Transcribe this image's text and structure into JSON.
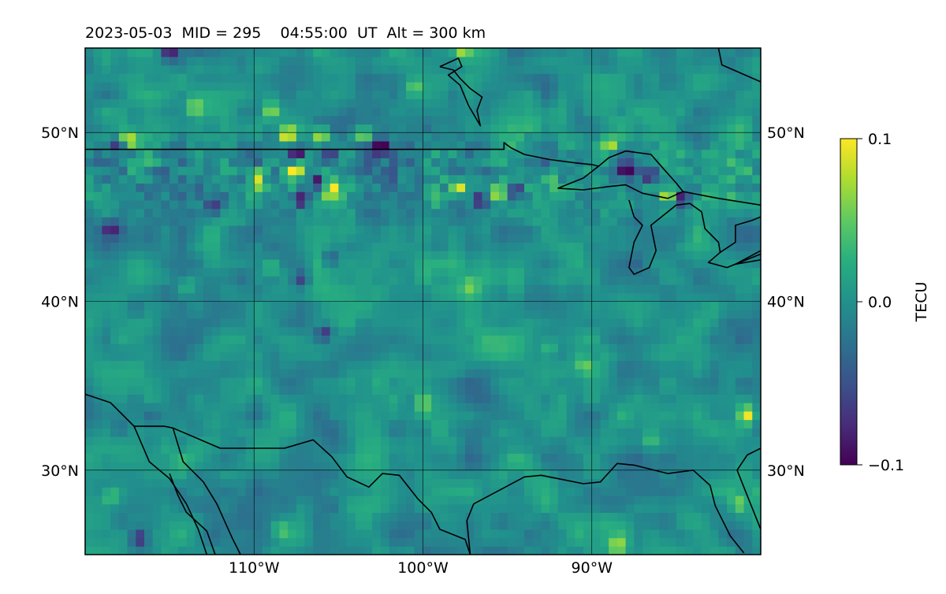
{
  "chart_data": {
    "type": "heatmap",
    "title": "2023-05-03  MID = 295    04:55:00  UT  Alt = 300 km",
    "xlim": [
      -120,
      -80
    ],
    "ylim": [
      25,
      55
    ],
    "x_ticks": [
      {
        "value": -110,
        "label": "110°W"
      },
      {
        "value": -100,
        "label": "100°W"
      },
      {
        "value": -90,
        "label": "90°W"
      }
    ],
    "y_ticks": [
      {
        "value": 30,
        "label": "30°N"
      },
      {
        "value": 40,
        "label": "40°N"
      },
      {
        "value": 50,
        "label": "50°N"
      }
    ],
    "grid": true,
    "colormap": "viridis",
    "colorbar": {
      "label": "TECU",
      "range": [
        -0.1,
        0.1
      ],
      "ticks": [
        {
          "value": 0.1,
          "label": "0.1"
        },
        {
          "value": 0.0,
          "label": "0.0"
        },
        {
          "value": -0.1,
          "label": "−0.1"
        }
      ]
    },
    "field": {
      "description_units": "TEC perturbation in TECU on ~0.5 deg lon/lat grid",
      "base_value": 0.0,
      "noise_amplitude": 0.035,
      "features": [
        {
          "lon": -115,
          "lat": 54.8,
          "value": -0.09
        },
        {
          "lon": -113.5,
          "lat": 51.5,
          "value": 0.06
        },
        {
          "lon": -117.5,
          "lat": 49.6,
          "value": 0.1
        },
        {
          "lon": -118,
          "lat": 49.2,
          "value": -0.1
        },
        {
          "lon": -109,
          "lat": 51.3,
          "value": 0.07
        },
        {
          "lon": -108,
          "lat": 49.9,
          "value": 0.1
        },
        {
          "lon": -107.5,
          "lat": 48.8,
          "value": -0.1
        },
        {
          "lon": -106,
          "lat": 49.9,
          "value": 0.1
        },
        {
          "lon": -105.5,
          "lat": 48.6,
          "value": -0.08
        },
        {
          "lon": -103.5,
          "lat": 49.9,
          "value": 0.09
        },
        {
          "lon": -102.5,
          "lat": 49.1,
          "value": -0.1
        },
        {
          "lon": -107.6,
          "lat": 47.7,
          "value": 0.1
        },
        {
          "lon": -107.2,
          "lat": 46.1,
          "value": -0.1
        },
        {
          "lon": -106.2,
          "lat": 47.1,
          "value": -0.09
        },
        {
          "lon": -105.3,
          "lat": 46.6,
          "value": 0.1
        },
        {
          "lon": -109.8,
          "lat": 47.3,
          "value": 0.09
        },
        {
          "lon": -97.8,
          "lat": 46.8,
          "value": 0.09
        },
        {
          "lon": -96.5,
          "lat": 46.1,
          "value": -0.1
        },
        {
          "lon": -95.8,
          "lat": 46.4,
          "value": 0.08
        },
        {
          "lon": -94.5,
          "lat": 46.6,
          "value": -0.09
        },
        {
          "lon": -92.5,
          "lat": 47.2,
          "value": 0.08
        },
        {
          "lon": -89,
          "lat": 49.3,
          "value": 0.09
        },
        {
          "lon": -88,
          "lat": 47.8,
          "value": -0.1
        },
        {
          "lon": -86.5,
          "lat": 47.3,
          "value": -0.08
        },
        {
          "lon": -85.5,
          "lat": 46.3,
          "value": 0.1
        },
        {
          "lon": -84.6,
          "lat": 46.1,
          "value": -0.1
        },
        {
          "lon": -99.5,
          "lat": 46.3,
          "value": 0.05
        },
        {
          "lon": -100.5,
          "lat": 52.8,
          "value": 0.05
        },
        {
          "lon": -97.7,
          "lat": 54.8,
          "value": 0.06
        },
        {
          "lon": -112.3,
          "lat": 45.7,
          "value": -0.05
        },
        {
          "lon": -118.5,
          "lat": 44.3,
          "value": -0.07
        },
        {
          "lon": -105.5,
          "lat": 42.6,
          "value": -0.05
        },
        {
          "lon": -109,
          "lat": 42.0,
          "value": 0.04
        },
        {
          "lon": -107.3,
          "lat": 41.3,
          "value": -0.05
        },
        {
          "lon": -97.2,
          "lat": 41.0,
          "value": 0.04
        },
        {
          "lon": -105.8,
          "lat": 38.2,
          "value": -0.07
        },
        {
          "lon": -114,
          "lat": 41.0,
          "value": 0.04
        },
        {
          "lon": -92.5,
          "lat": 37.3,
          "value": 0.04
        },
        {
          "lon": -90.5,
          "lat": 36.3,
          "value": 0.04
        },
        {
          "lon": -100,
          "lat": 34.0,
          "value": 0.04
        },
        {
          "lon": -80.8,
          "lat": 33.3,
          "value": 0.1
        },
        {
          "lon": -81.3,
          "lat": 28.0,
          "value": 0.06
        },
        {
          "lon": -116.8,
          "lat": 26.0,
          "value": -0.08
        },
        {
          "lon": -118.5,
          "lat": 28.5,
          "value": 0.05
        },
        {
          "lon": -86.5,
          "lat": 31.8,
          "value": 0.04
        },
        {
          "lon": -88.5,
          "lat": 25.5,
          "value": 0.07
        },
        {
          "lon": -108.5,
          "lat": 26.5,
          "value": 0.04
        }
      ]
    },
    "coastlines": [
      [
        [
          -120,
          49
        ],
        [
          -95.2,
          49
        ],
        [
          -95.2,
          49.4
        ],
        [
          -94.8,
          49.1
        ],
        [
          -94,
          48.7
        ],
        [
          -92.5,
          48.4
        ],
        [
          -91,
          48.2
        ],
        [
          -90,
          48.1
        ],
        [
          -89.6,
          48.0
        ]
      ],
      [
        [
          -89.6,
          48.0
        ],
        [
          -89,
          48.5
        ],
        [
          -88,
          48.9
        ],
        [
          -86.5,
          48.7
        ],
        [
          -85.8,
          47.9
        ],
        [
          -85,
          47.0
        ],
        [
          -84.6,
          46.5
        ],
        [
          -85.5,
          46.1
        ],
        [
          -87,
          46.4
        ],
        [
          -88,
          46.9
        ],
        [
          -89,
          46.8
        ],
        [
          -90.5,
          46.6
        ],
        [
          -92,
          46.7
        ],
        [
          -90.5,
          47.3
        ],
        [
          -89.6,
          48.0
        ]
      ],
      [
        [
          -84.6,
          46.5
        ],
        [
          -82.5,
          46.1
        ],
        [
          -80,
          45.7
        ]
      ],
      [
        [
          -87.8,
          46.0
        ],
        [
          -87.5,
          45.0
        ],
        [
          -87.0,
          44.5
        ],
        [
          -87.5,
          43.5
        ],
        [
          -87.8,
          42.0
        ],
        [
          -87.5,
          41.6
        ],
        [
          -86.6,
          42.0
        ],
        [
          -86.2,
          43.0
        ],
        [
          -86.5,
          44.5
        ],
        [
          -85.0,
          45.7
        ],
        [
          -84.2,
          45.8
        ]
      ],
      [
        [
          -84.2,
          45.8
        ],
        [
          -83.5,
          45.3
        ],
        [
          -83.3,
          44.3
        ],
        [
          -82.5,
          43.5
        ],
        [
          -82.4,
          42.9
        ],
        [
          -83.1,
          42.3
        ],
        [
          -82.0,
          42.0
        ],
        [
          -80.5,
          42.6
        ],
        [
          -80.0,
          42.8
        ]
      ],
      [
        [
          -82.4,
          42.9
        ],
        [
          -81.5,
          43.5
        ],
        [
          -81.5,
          44.5
        ],
        [
          -80.5,
          44.8
        ],
        [
          -80.0,
          45.0
        ]
      ],
      [
        [
          -80.0,
          43.0
        ],
        [
          -81.5,
          42.2
        ],
        [
          -79.2,
          42.6
        ]
      ],
      [
        [
          -80,
          53.0
        ],
        [
          -82.3,
          54.0
        ],
        [
          -82.5,
          55.0
        ]
      ],
      [
        [
          -99,
          53.9
        ],
        [
          -98.2,
          53.7
        ],
        [
          -97.8,
          53.2
        ],
        [
          -97.2,
          52.6
        ],
        [
          -96.5,
          52.1
        ],
        [
          -96.8,
          51.3
        ],
        [
          -96.6,
          50.4
        ],
        [
          -97.3,
          51.6
        ],
        [
          -97.8,
          52.8
        ],
        [
          -98.5,
          53.4
        ],
        [
          -97.7,
          53.9
        ],
        [
          -97.9,
          54.4
        ],
        [
          -99,
          53.9
        ]
      ],
      [
        [
          -120,
          34.5
        ],
        [
          -118.5,
          34.0
        ],
        [
          -117.1,
          32.6
        ],
        [
          -115.3,
          32.6
        ],
        [
          -114.8,
          32.5
        ],
        [
          -112,
          31.3
        ],
        [
          -108.2,
          31.3
        ],
        [
          -106.5,
          31.8
        ],
        [
          -105.4,
          30.8
        ],
        [
          -104.5,
          29.6
        ],
        [
          -103.2,
          29.0
        ],
        [
          -102.4,
          29.8
        ],
        [
          -101.4,
          29.7
        ],
        [
          -100.3,
          28.3
        ],
        [
          -99.5,
          27.5
        ],
        [
          -99.0,
          26.5
        ],
        [
          -97.5,
          25.9
        ],
        [
          -97.2,
          25.0
        ]
      ],
      [
        [
          -117.1,
          32.6
        ],
        [
          -116.2,
          30.5
        ],
        [
          -115.0,
          29.5
        ],
        [
          -114.0,
          28.0
        ],
        [
          -113.3,
          26.5
        ],
        [
          -112.8,
          25.0
        ]
      ],
      [
        [
          -114.8,
          32.5
        ],
        [
          -114.2,
          30.5
        ],
        [
          -113.0,
          29.3
        ],
        [
          -112.2,
          28.0
        ],
        [
          -111.3,
          26.0
        ],
        [
          -110.8,
          25.0
        ]
      ],
      [
        [
          -112.3,
          25.0
        ],
        [
          -112.8,
          26.4
        ],
        [
          -114.0,
          27.5
        ],
        [
          -114.5,
          28.5
        ],
        [
          -115.0,
          29.8
        ]
      ],
      [
        [
          -97.2,
          25.0
        ],
        [
          -97.4,
          27.0
        ],
        [
          -97.0,
          28.0
        ],
        [
          -95.5,
          28.8
        ],
        [
          -94.0,
          29.6
        ],
        [
          -93.0,
          29.7
        ],
        [
          -91.5,
          29.4
        ],
        [
          -90.5,
          29.2
        ],
        [
          -89.5,
          29.3
        ],
        [
          -88.5,
          30.4
        ],
        [
          -87.5,
          30.3
        ],
        [
          -85.5,
          29.8
        ],
        [
          -84.0,
          30.0
        ],
        [
          -83.0,
          29.1
        ],
        [
          -82.7,
          27.9
        ],
        [
          -81.8,
          26.1
        ],
        [
          -81.0,
          25.1
        ]
      ],
      [
        [
          -80.0,
          31.3
        ],
        [
          -80.8,
          30.9
        ],
        [
          -81.4,
          30.0
        ],
        [
          -80.6,
          28.0
        ],
        [
          -80.0,
          26.5
        ]
      ]
    ]
  }
}
